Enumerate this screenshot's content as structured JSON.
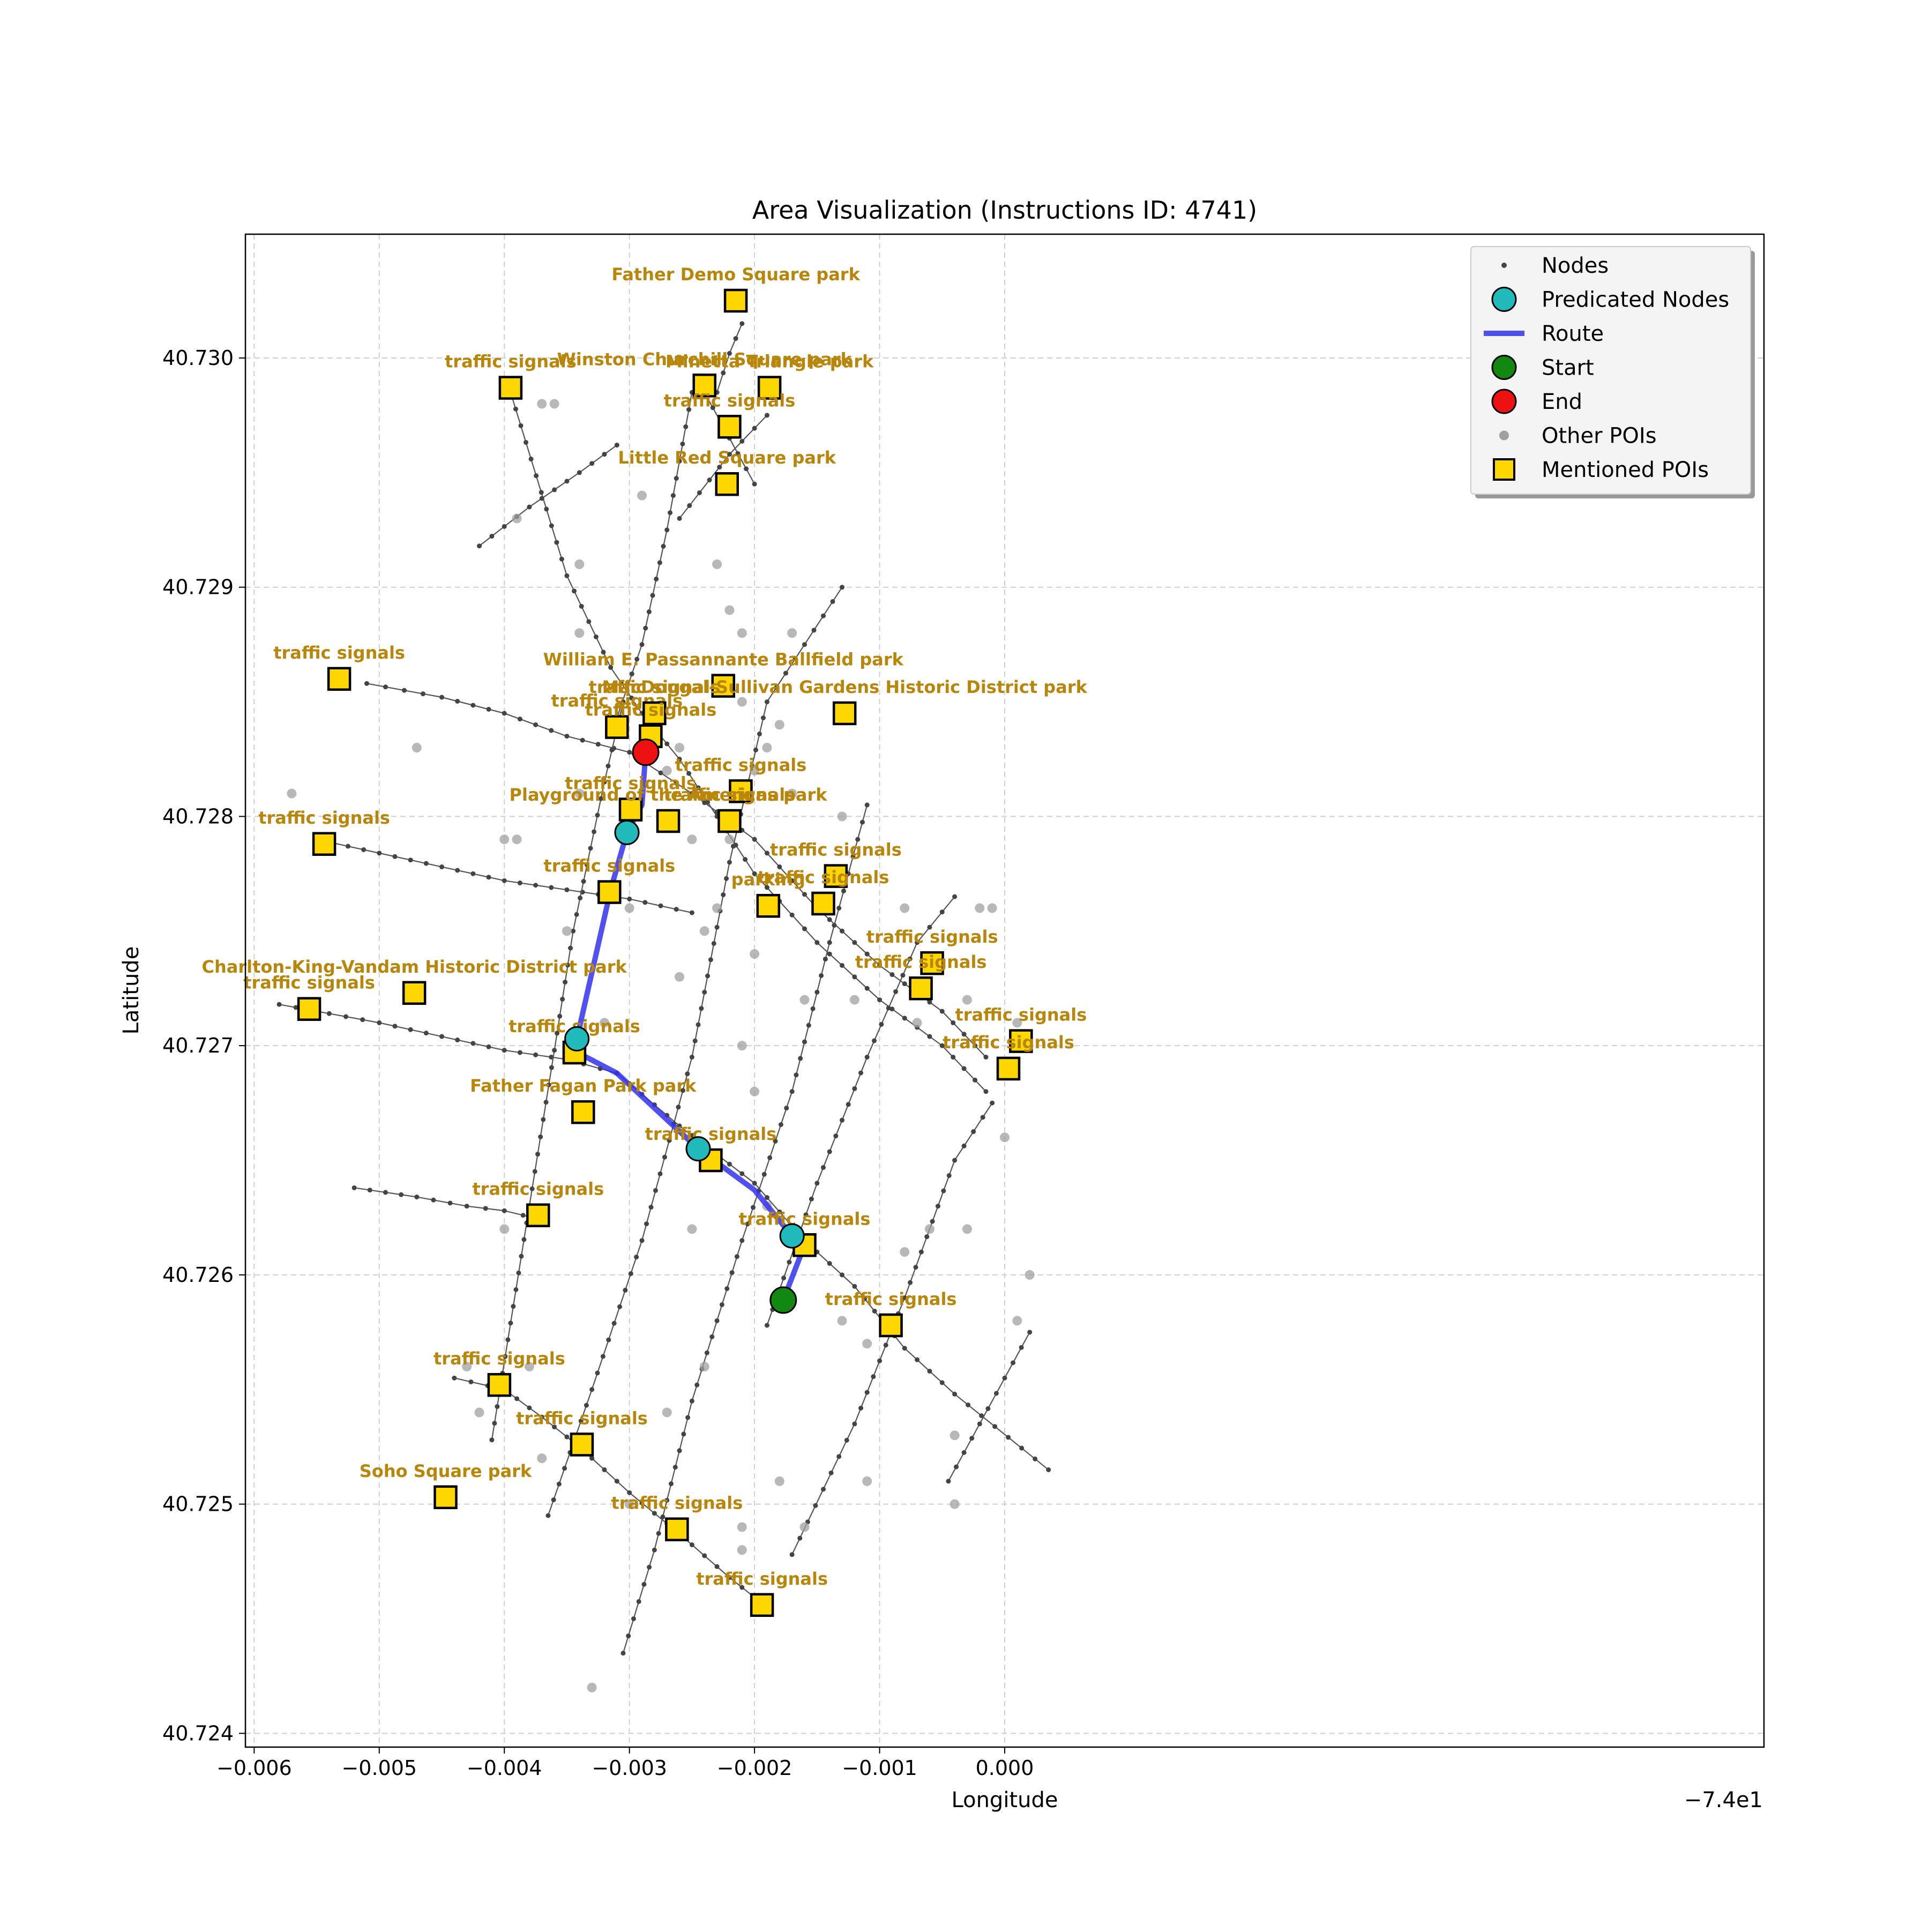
{
  "chart_data": {
    "type": "scatter",
    "title": "Area Visualization (Instructions ID: 4741)",
    "xlabel": "Longitude",
    "ylabel": "Latitude",
    "x_offset_label": "−7.4e1",
    "xlim": [
      -0.00607,
      0.00607
    ],
    "ylim": [
      40.72394,
      40.73054
    ],
    "grid": true,
    "xticks": [
      {
        "v": -0.006,
        "label": "−0.006"
      },
      {
        "v": -0.005,
        "label": "−0.005"
      },
      {
        "v": -0.004,
        "label": "−0.004"
      },
      {
        "v": -0.003,
        "label": "−0.003"
      },
      {
        "v": -0.002,
        "label": "−0.002"
      },
      {
        "v": -0.001,
        "label": "−0.001"
      },
      {
        "v": 0.0,
        "label": "0.000"
      }
    ],
    "yticks": [
      {
        "v": 40.724,
        "label": "40.724"
      },
      {
        "v": 40.725,
        "label": "40.725"
      },
      {
        "v": 40.726,
        "label": "40.726"
      },
      {
        "v": 40.727,
        "label": "40.727"
      },
      {
        "v": 40.728,
        "label": "40.728"
      },
      {
        "v": 40.729,
        "label": "40.729"
      },
      {
        "v": 40.73,
        "label": "40.730"
      }
    ],
    "legend": {
      "position": "top-right",
      "entries": [
        {
          "label": "Nodes",
          "kind": "node"
        },
        {
          "label": "Predicated Nodes",
          "kind": "pred"
        },
        {
          "label": "Route",
          "kind": "route"
        },
        {
          "label": "Start",
          "kind": "start"
        },
        {
          "label": "End",
          "kind": "end"
        },
        {
          "label": "Other POIs",
          "kind": "other"
        },
        {
          "label": "Mentioned POIs",
          "kind": "poi"
        }
      ]
    },
    "colors": {
      "route": "#3333ee",
      "predicted": "#22bbbb",
      "start": "#118811",
      "end": "#ee1111",
      "poi_fill": "#ffd700",
      "poi_label": "#b8860b",
      "node": "#444444",
      "other_poi": "#a0a0a0"
    },
    "streets": [
      [
        [
          -0.00395,
          40.72985
        ],
        [
          -0.0035,
          40.72905
        ],
        [
          -0.00315,
          40.72865
        ],
        [
          -0.0029,
          40.72845
        ],
        [
          -0.0026,
          40.72825
        ],
        [
          -0.0023,
          40.728
        ],
        [
          -0.002,
          40.72775
        ],
        [
          -0.0015,
          40.72745
        ],
        [
          -0.001,
          40.7272
        ],
        [
          -0.0005,
          40.727
        ],
        [
          -0.00015,
          40.7268
        ]
      ],
      [
        [
          -0.0051,
          40.72858
        ],
        [
          -0.0045,
          40.72852
        ],
        [
          -0.004,
          40.72845
        ],
        [
          -0.0035,
          40.72835
        ],
        [
          -0.003,
          40.72828
        ],
        [
          -0.0025,
          40.7281
        ],
        [
          -0.002,
          40.7279
        ],
        [
          -0.0015,
          40.7276
        ],
        [
          -0.001,
          40.72735
        ],
        [
          -0.0005,
          40.72715
        ],
        [
          -0.00015,
          40.72695
        ]
      ],
      [
        [
          -0.0055,
          40.7279
        ],
        [
          -0.005,
          40.72784
        ],
        [
          -0.0045,
          40.72778
        ],
        [
          -0.004,
          40.72772
        ],
        [
          -0.0035,
          40.72768
        ],
        [
          -0.003,
          40.72764
        ],
        [
          -0.0025,
          40.72758
        ]
      ],
      [
        [
          -0.0058,
          40.72718
        ],
        [
          -0.005,
          40.7271
        ],
        [
          -0.0045,
          40.72704
        ],
        [
          -0.004,
          40.72698
        ],
        [
          -0.0035,
          40.72694
        ],
        [
          -0.0031,
          40.72688
        ],
        [
          -0.0026,
          40.72665
        ],
        [
          -0.002,
          40.7264
        ],
        [
          -0.0016,
          40.72615
        ],
        [
          -0.0012,
          40.72595
        ],
        [
          -0.0008,
          40.72568
        ],
        [
          -0.0004,
          40.72548
        ],
        [
          0.00035,
          40.72515
        ]
      ],
      [
        [
          -0.0052,
          40.72638
        ],
        [
          -0.0047,
          40.72634
        ],
        [
          -0.0043,
          40.7263
        ],
        [
          -0.004,
          40.72628
        ],
        [
          -0.0037,
          40.72624
        ]
      ],
      [
        [
          -0.0044,
          40.72555
        ],
        [
          -0.004,
          40.7255
        ],
        [
          -0.0037,
          40.72538
        ],
        [
          -0.0034,
          40.72525
        ],
        [
          -0.003,
          40.72505
        ],
        [
          -0.0026,
          40.72487
        ],
        [
          -0.0022,
          40.72468
        ],
        [
          -0.0019,
          40.72455
        ]
      ],
      [
        [
          -0.0042,
          40.72918
        ],
        [
          -0.0038,
          40.72935
        ],
        [
          -0.0034,
          40.7295
        ],
        [
          -0.0031,
          40.72962
        ]
      ],
      [
        [
          -0.0041,
          40.72528
        ],
        [
          -0.0038,
          40.7263
        ],
        [
          -0.0036,
          40.72698
        ],
        [
          -0.00345,
          40.7275
        ],
        [
          -0.0032,
          40.72815
        ],
        [
          -0.00305,
          40.7285
        ]
      ],
      [
        [
          -0.0031,
          40.72843
        ],
        [
          -0.0029,
          40.72875
        ],
        [
          -0.0027,
          40.72925
        ],
        [
          -0.0025,
          40.72985
        ],
        [
          -0.0023,
          40.72985
        ],
        [
          -0.0022,
          40.73002
        ],
        [
          -0.0021,
          40.73015
        ]
      ],
      [
        [
          -0.00365,
          40.72495
        ],
        [
          -0.0033,
          40.7255
        ],
        [
          -0.0029,
          40.72615
        ],
        [
          -0.0025,
          40.72695
        ],
        [
          -0.0022,
          40.7278
        ],
        [
          -0.0019,
          40.7285
        ],
        [
          -0.0013,
          40.729
        ]
      ],
      [
        [
          -0.00305,
          40.72435
        ],
        [
          -0.0028,
          40.7248
        ],
        [
          -0.0025,
          40.72545
        ],
        [
          -0.0021,
          40.72615
        ],
        [
          -0.0017,
          40.7268
        ],
        [
          -0.0014,
          40.72745
        ],
        [
          -0.0011,
          40.72805
        ]
      ],
      [
        [
          -0.0019,
          40.72578
        ],
        [
          -0.0015,
          40.7264
        ],
        [
          -0.0011,
          40.72695
        ],
        [
          -0.0007,
          40.72745
        ],
        [
          -0.0004,
          40.72765
        ]
      ],
      [
        [
          -0.0017,
          40.72478
        ],
        [
          -0.0012,
          40.72535
        ],
        [
          -0.0008,
          40.7259
        ],
        [
          -0.0004,
          40.7265
        ],
        [
          -0.0001,
          40.72675
        ]
      ],
      [
        [
          -0.00045,
          40.7251
        ],
        [
          -0.0002,
          40.72535
        ],
        [
          0.0,
          40.72555
        ],
        [
          0.0002,
          40.72575
        ]
      ],
      [
        [
          -0.0026,
          40.7293
        ],
        [
          -0.0022,
          40.72958
        ],
        [
          -0.0019,
          40.72975
        ]
      ],
      [
        [
          -0.0024,
          40.72985
        ],
        [
          -0.0022,
          40.72965
        ],
        [
          -0.002,
          40.72945
        ]
      ]
    ],
    "route": [
      [
        -0.00177,
        40.72589
      ],
      [
        -0.0016,
        40.72613
      ],
      [
        -0.0017,
        40.72617
      ],
      [
        -0.002,
        40.72637
      ],
      [
        -0.00245,
        40.72655
      ],
      [
        -0.0031,
        40.72688
      ],
      [
        -0.00345,
        40.72698
      ],
      [
        -0.00342,
        40.72703
      ],
      [
        -0.00315,
        40.72768
      ],
      [
        -0.00302,
        40.72793
      ],
      [
        -0.0029,
        40.72805
      ],
      [
        -0.00287,
        40.72828
      ]
    ],
    "predicted_nodes": [
      [
        -0.00342,
        40.72703
      ],
      [
        -0.00302,
        40.72793
      ],
      [
        -0.00245,
        40.72655
      ],
      [
        -0.0017,
        40.72617
      ]
    ],
    "start": [
      -0.00177,
      40.72589
    ],
    "end": [
      -0.00287,
      40.72828
    ],
    "other_pois": [
      [
        -0.0039,
        40.7279
      ],
      [
        -0.0037,
        40.7298
      ],
      [
        -0.0036,
        40.7298
      ],
      [
        -0.0034,
        40.7291
      ],
      [
        -0.0039,
        40.7293
      ],
      [
        -0.0047,
        40.7283
      ],
      [
        -0.0057,
        40.7281
      ],
      [
        -0.004,
        40.7279
      ],
      [
        -0.0034,
        40.7281
      ],
      [
        -0.0035,
        40.7275
      ],
      [
        -0.0032,
        40.7271
      ],
      [
        -0.003,
        40.7276
      ],
      [
        -0.0028,
        40.7284
      ],
      [
        -0.0027,
        40.7282
      ],
      [
        -0.0026,
        40.7283
      ],
      [
        -0.0025,
        40.7279
      ],
      [
        -0.0024,
        40.7275
      ],
      [
        -0.0023,
        40.7276
      ],
      [
        -0.0022,
        40.7279
      ],
      [
        -0.0021,
        40.7285
      ],
      [
        -0.002,
        40.7282
      ],
      [
        -0.0019,
        40.7283
      ],
      [
        -0.0018,
        40.7284
      ],
      [
        -0.0017,
        40.7281
      ],
      [
        -0.002,
        40.7274
      ],
      [
        -0.0023,
        40.7291
      ],
      [
        -0.0022,
        40.7289
      ],
      [
        -0.0021,
        40.7288
      ],
      [
        -0.0017,
        40.7288
      ],
      [
        -0.0013,
        40.728
      ],
      [
        -0.0012,
        40.7272
      ],
      [
        -0.0016,
        40.7272
      ],
      [
        -0.0021,
        40.727
      ],
      [
        -0.002,
        40.7268
      ],
      [
        -0.0019,
        40.7263
      ],
      [
        -0.0025,
        40.7262
      ],
      [
        -0.0026,
        40.7273
      ],
      [
        -0.004,
        40.7262
      ],
      [
        -0.0043,
        40.7256
      ],
      [
        -0.0042,
        40.7254
      ],
      [
        -0.0038,
        40.7256
      ],
      [
        -0.0037,
        40.7252
      ],
      [
        -0.003,
        40.725
      ],
      [
        -0.0027,
        40.7254
      ],
      [
        -0.0024,
        40.7256
      ],
      [
        -0.0021,
        40.7249
      ],
      [
        -0.0021,
        40.7248
      ],
      [
        -0.0018,
        40.7251
      ],
      [
        -0.0016,
        40.7249
      ],
      [
        -0.0011,
        40.7251
      ],
      [
        -0.0011,
        40.7257
      ],
      [
        -0.0013,
        40.7258
      ],
      [
        -0.0008,
        40.7261
      ],
      [
        -0.0006,
        40.7262
      ],
      [
        -0.0003,
        40.7262
      ],
      [
        -0.0004,
        40.7253
      ],
      [
        -0.0004,
        40.725
      ],
      [
        0.0001,
        40.7258
      ],
      [
        0.0002,
        40.726
      ],
      [
        -0.0003,
        40.7272
      ],
      [
        -0.0002,
        40.7276
      ],
      [
        -0.0001,
        40.7276
      ],
      [
        0.0,
        40.7266
      ],
      [
        0.0001,
        40.7271
      ],
      [
        -0.0007,
        40.7271
      ],
      [
        -0.0008,
        40.7276
      ],
      [
        -0.0033,
        40.7242
      ],
      [
        -0.0026,
        40.7249
      ],
      [
        -0.0034,
        40.7288
      ],
      [
        -0.0029,
        40.7294
      ]
    ],
    "pois": [
      {
        "name": "Father Demo Square   park",
        "x": -0.00215,
        "y": 40.73025
      },
      {
        "name": "traffic signals",
        "x": -0.00395,
        "y": 40.72987
      },
      {
        "name": "Winston Churchill Square   park",
        "x": -0.0024,
        "y": 40.72988
      },
      {
        "name": "Minetta Triangle   park",
        "x": -0.00188,
        "y": 40.72987
      },
      {
        "name": "traffic signals",
        "x": -0.0022,
        "y": 40.7297
      },
      {
        "name": "Little Red Square   park",
        "x": -0.00222,
        "y": 40.72945
      },
      {
        "name": "traffic signals",
        "x": -0.00532,
        "y": 40.7286
      },
      {
        "name": "William E. Passannante Ballfield   park",
        "x": -0.00225,
        "y": 40.72857
      },
      {
        "name": "traffic signals",
        "x": -0.0031,
        "y": 40.72839
      },
      {
        "name": "traffic signals",
        "x": -0.0028,
        "y": 40.72845
      },
      {
        "name": "traffic signals",
        "x": -0.00283,
        "y": 40.72835
      },
      {
        "name": "MacDougal-Sullivan Gardens Historic District   park",
        "x": -0.00128,
        "y": 40.72845
      },
      {
        "name": "traffic signals",
        "x": -0.00544,
        "y": 40.72788
      },
      {
        "name": "traffic signals",
        "x": -0.00211,
        "y": 40.72811
      },
      {
        "name": "traffic signals",
        "x": -0.00299,
        "y": 40.72803
      },
      {
        "name": "Playground of the Americas   park",
        "x": -0.00269,
        "y": 40.72798
      },
      {
        "name": "traffic signals",
        "x": -0.0022,
        "y": 40.72798
      },
      {
        "name": "traffic signals",
        "x": -0.00316,
        "y": 40.72767
      },
      {
        "name": "traffic signals",
        "x": -0.00135,
        "y": 40.72774
      },
      {
        "name": "parking",
        "x": -0.00189,
        "y": 40.72761
      },
      {
        "name": "traffic signals",
        "x": -0.00145,
        "y": 40.72762
      },
      {
        "name": "traffic signals",
        "x": -0.00058,
        "y": 40.72736
      },
      {
        "name": "traffic signals",
        "x": -0.00067,
        "y": 40.72725
      },
      {
        "name": "Charlton-King-Vandam Historic District   park",
        "x": -0.00472,
        "y": 40.72723
      },
      {
        "name": "traffic signals",
        "x": -0.00556,
        "y": 40.72716
      },
      {
        "name": "traffic signals",
        "x": 0.00013,
        "y": 40.72702
      },
      {
        "name": "traffic signals",
        "x": 3e-05,
        "y": 40.7269
      },
      {
        "name": "traffic signals",
        "x": -0.00344,
        "y": 40.72697
      },
      {
        "name": "Father Fagan Park   park",
        "x": -0.00337,
        "y": 40.72671
      },
      {
        "name": "traffic signals",
        "x": -0.00235,
        "y": 40.7265
      },
      {
        "name": "traffic signals",
        "x": -0.00373,
        "y": 40.72626
      },
      {
        "name": "traffic signals",
        "x": -0.0016,
        "y": 40.72613
      },
      {
        "name": "traffic signals",
        "x": -0.00091,
        "y": 40.72578
      },
      {
        "name": "traffic signals",
        "x": -0.00404,
        "y": 40.72552
      },
      {
        "name": "traffic signals",
        "x": -0.00338,
        "y": 40.72526
      },
      {
        "name": "Soho Square   park",
        "x": -0.00447,
        "y": 40.72503
      },
      {
        "name": "traffic signals",
        "x": -0.00262,
        "y": 40.72489
      },
      {
        "name": "traffic signals",
        "x": -0.00194,
        "y": 40.72456
      }
    ]
  }
}
